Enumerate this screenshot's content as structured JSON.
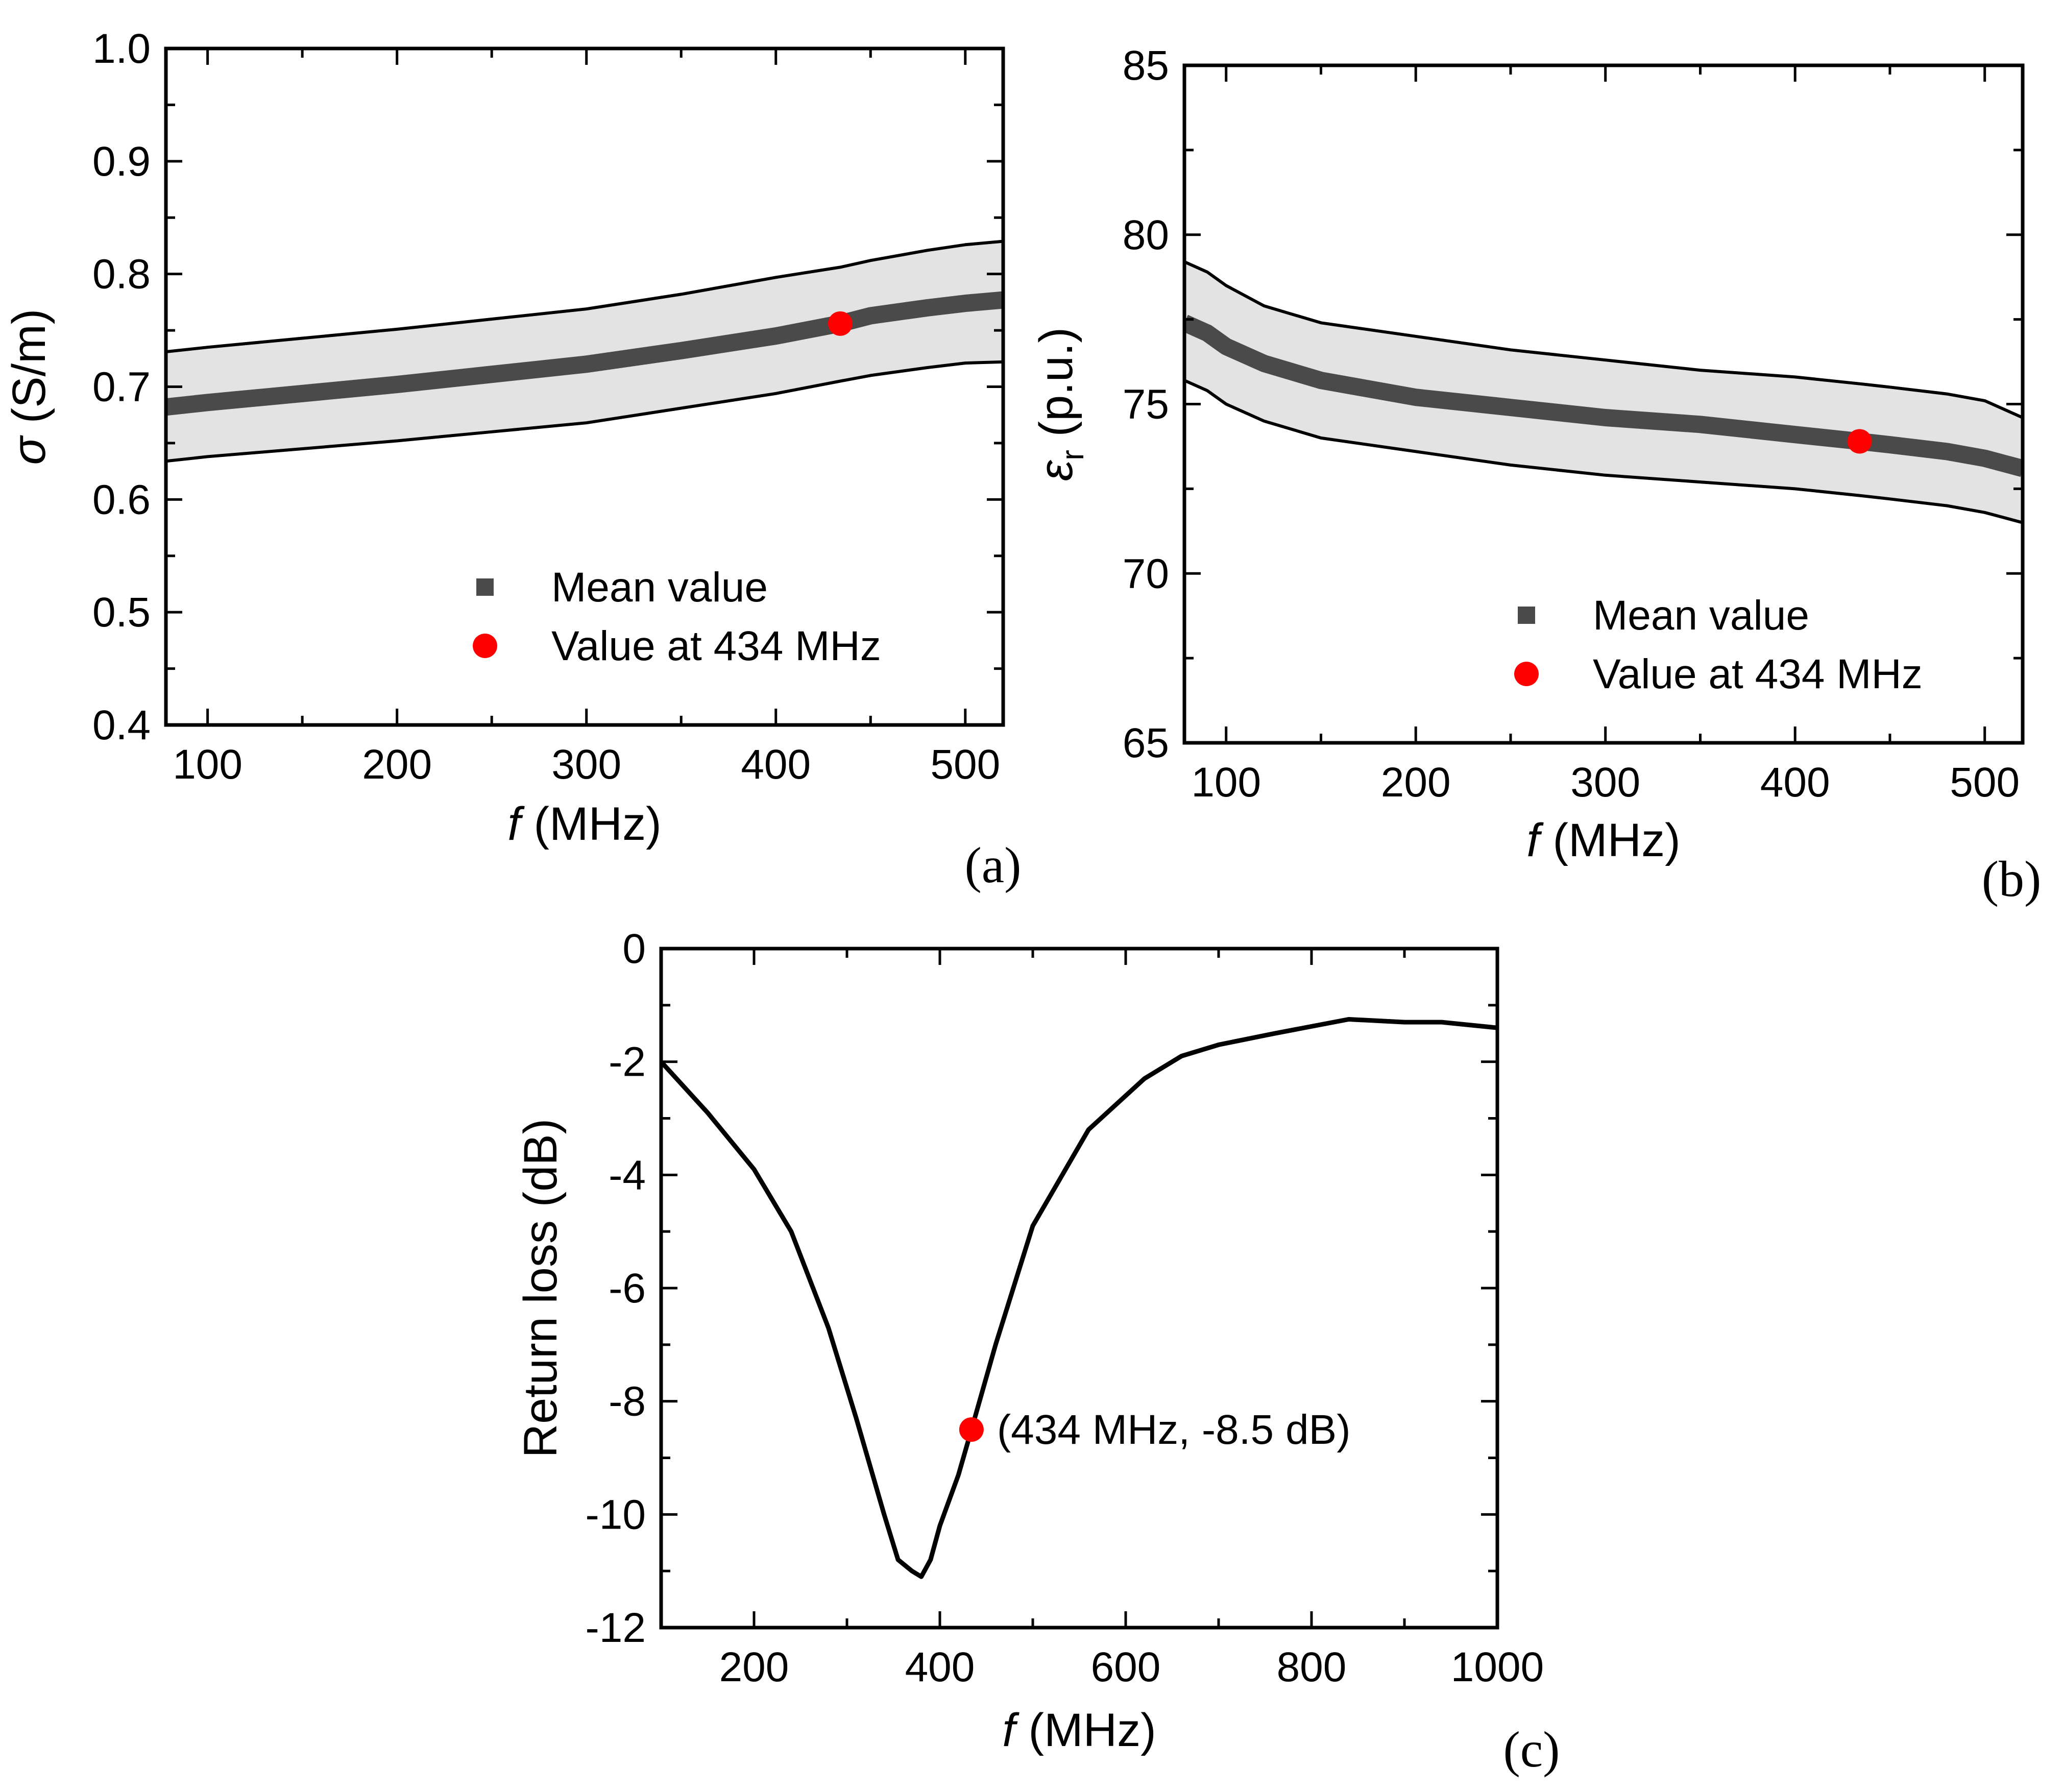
{
  "chart_data": [
    {
      "id": "a",
      "type": "area",
      "panel_label": "(a)",
      "xlabel_var": "f",
      "xlabel_unit": " (MHz)",
      "ylabel_var": "σ",
      "ylabel_unit": " (S/m)",
      "xlim": [
        78,
        520
      ],
      "ylim": [
        0.4,
        1.0
      ],
      "xticks": [
        100,
        200,
        300,
        400,
        500
      ],
      "xtick_labels": [
        "100",
        "200",
        "300",
        "400",
        "500"
      ],
      "yticks": [
        0.4,
        0.5,
        0.6,
        0.7,
        0.8,
        0.9,
        1.0
      ],
      "ytick_labels": [
        "0.4",
        "0.5",
        "0.6",
        "0.7",
        "0.8",
        "0.9",
        "1.0"
      ],
      "band_upper": {
        "x": [
          78,
          100,
          150,
          200,
          250,
          300,
          350,
          400,
          434,
          450,
          480,
          500,
          520
        ],
        "y": [
          0.731,
          0.735,
          0.743,
          0.751,
          0.76,
          0.769,
          0.782,
          0.797,
          0.806,
          0.812,
          0.821,
          0.826,
          0.829
        ]
      },
      "band_lower": {
        "x": [
          78,
          100,
          150,
          200,
          250,
          300,
          350,
          400,
          434,
          450,
          480,
          500,
          520
        ],
        "y": [
          0.634,
          0.638,
          0.645,
          0.652,
          0.66,
          0.668,
          0.681,
          0.694,
          0.705,
          0.71,
          0.717,
          0.721,
          0.722
        ]
      },
      "mean": {
        "x": [
          78,
          100,
          150,
          200,
          250,
          300,
          350,
          400,
          434,
          450,
          480,
          500,
          520
        ],
        "y": [
          0.682,
          0.686,
          0.694,
          0.702,
          0.711,
          0.72,
          0.732,
          0.745,
          0.756,
          0.763,
          0.77,
          0.774,
          0.777
        ]
      },
      "marker": {
        "x": 434,
        "y": 0.756
      },
      "legend": [
        {
          "label": "Mean value",
          "kind": "square"
        },
        {
          "label": "Value at 434 MHz",
          "kind": "circle"
        }
      ],
      "annotation": ""
    },
    {
      "id": "b",
      "type": "area",
      "panel_label": "(b)",
      "xlabel_var": "f",
      "xlabel_unit": " (MHz)",
      "ylabel_var": "ε",
      "ylabel_sub": "r",
      "ylabel_unit": " (p.u.)",
      "xlim": [
        78,
        520
      ],
      "ylim": [
        65,
        85
      ],
      "xticks": [
        100,
        200,
        300,
        400,
        500
      ],
      "xtick_labels": [
        "100",
        "200",
        "300",
        "400",
        "500"
      ],
      "yticks": [
        65,
        70,
        75,
        80,
        85
      ],
      "ytick_labels": [
        "65",
        "70",
        "75",
        "80",
        "85"
      ],
      "band_upper": {
        "x": [
          78,
          90,
          100,
          120,
          150,
          200,
          250,
          300,
          350,
          400,
          434,
          450,
          480,
          500,
          520
        ],
        "y": [
          79.2,
          78.9,
          78.5,
          77.9,
          77.4,
          77.0,
          76.6,
          76.3,
          76.0,
          75.8,
          75.6,
          75.5,
          75.3,
          75.1,
          74.6
        ]
      },
      "band_lower": {
        "x": [
          78,
          90,
          100,
          120,
          150,
          200,
          250,
          300,
          350,
          400,
          434,
          450,
          480,
          500,
          520
        ],
        "y": [
          75.7,
          75.4,
          75.0,
          74.5,
          74.0,
          73.6,
          73.2,
          72.9,
          72.7,
          72.5,
          72.3,
          72.2,
          72.0,
          71.8,
          71.5
        ]
      },
      "mean": {
        "x": [
          78,
          90,
          100,
          120,
          150,
          200,
          250,
          300,
          350,
          400,
          434,
          450,
          480,
          500,
          520
        ],
        "y": [
          77.4,
          77.1,
          76.7,
          76.2,
          75.7,
          75.2,
          74.9,
          74.6,
          74.4,
          74.1,
          73.9,
          73.8,
          73.6,
          73.4,
          73.1
        ]
      },
      "marker": {
        "x": 434,
        "y": 73.9
      },
      "legend": [
        {
          "label": "Mean value",
          "kind": "square"
        },
        {
          "label": "Value at 434 MHz",
          "kind": "circle"
        }
      ],
      "annotation": ""
    },
    {
      "id": "c",
      "type": "line",
      "panel_label": "(c)",
      "xlabel_var": "f",
      "xlabel_unit": " (MHz)",
      "ylabel_var": "",
      "ylabel_unit": "Return loss (dB)",
      "xlim": [
        100,
        1000
      ],
      "ylim": [
        -12,
        0
      ],
      "xticks": [
        200,
        400,
        600,
        800,
        1000
      ],
      "xtick_labels": [
        "200",
        "400",
        "600",
        "800",
        "1000"
      ],
      "yticks": [
        -12,
        -10,
        -8,
        -6,
        -4,
        -2,
        0
      ],
      "ytick_labels": [
        "-12",
        "-10",
        "-8",
        "-6",
        "-4",
        "-2",
        "0"
      ],
      "series": [
        {
          "name": "Return loss",
          "x": [
            100,
            150,
            200,
            240,
            280,
            310,
            340,
            355,
            370,
            380,
            390,
            400,
            420,
            434,
            460,
            500,
            560,
            620,
            660,
            700,
            760,
            840,
            900,
            940,
            1000
          ],
          "y": [
            -2.0,
            -2.9,
            -3.9,
            -5.0,
            -6.7,
            -8.3,
            -10.0,
            -10.8,
            -11.0,
            -11.1,
            -10.8,
            -10.2,
            -9.3,
            -8.5,
            -7.0,
            -4.9,
            -3.2,
            -2.3,
            -1.9,
            -1.7,
            -1.5,
            -1.25,
            -1.3,
            -1.3,
            -1.4
          ]
        }
      ],
      "marker": {
        "x": 434,
        "y": -8.5
      },
      "legend": [],
      "annotation": "(434 MHz, -8.5 dB)"
    }
  ],
  "colors": {
    "band_fill": "#e3e3e3",
    "mean_line": "#4a4a4a",
    "marker": "#ff0000",
    "axis": "#000000"
  }
}
